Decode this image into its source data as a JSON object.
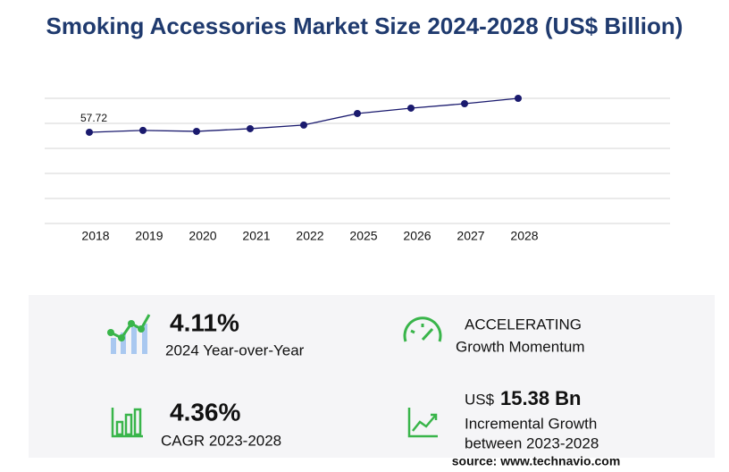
{
  "chart_data": {
    "type": "line",
    "title": "Smoking Accessories Market Size 2024-2028 (US$ Billion)",
    "categories": [
      "2018",
      "2019",
      "2020",
      "2021",
      "2022",
      "2025",
      "2026",
      "2027",
      "2028"
    ],
    "values": [
      57.72,
      58.9,
      58.3,
      60.0,
      62.3,
      69.6,
      73.0,
      75.8,
      79.2
    ],
    "value_labels": [
      "57.72",
      null,
      null,
      null,
      null,
      null,
      null,
      null,
      null
    ],
    "color": "#1a1a6e",
    "ylim": [
      0,
      79.2
    ],
    "yticks": [
      0,
      15.84,
      31.68,
      47.52,
      63.36,
      79.2
    ],
    "grid": true
  },
  "kpis": [
    {
      "value": "4.11%",
      "label": [
        "2024 Year-over-Year"
      ]
    },
    {
      "value": "ACCELERATING",
      "label": [
        "Growth Momentum"
      ]
    },
    {
      "value": "4.36%",
      "label": [
        "CAGR 2023-2028"
      ]
    },
    {
      "prefix": "US$",
      "value": "15.38 Bn",
      "label": [
        "Incremental Growth",
        "between 2023-2028"
      ]
    }
  ],
  "source": "source: www.technavio.com"
}
